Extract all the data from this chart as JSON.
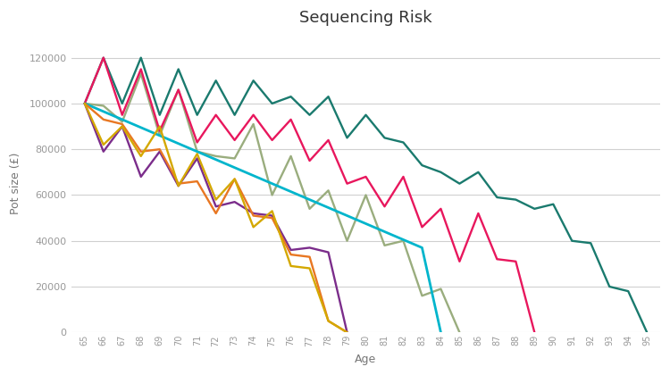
{
  "title": "Sequencing Risk",
  "xlabel": "Age",
  "ylabel": "Pot size (£)",
  "ylim": [
    0,
    130000
  ],
  "yticks": [
    0,
    20000,
    40000,
    60000,
    80000,
    100000,
    120000
  ],
  "background_color": "#ffffff",
  "grid_color": "#d0d0d0",
  "teal_color": "#1a7a6e",
  "crimson_color": "#e8175d",
  "olive_color": "#9aad7e",
  "cyan_color": "#00b5cc",
  "purple_color": "#7b2d8b",
  "orange_color": "#e87722",
  "yellow_color": "#d4a800",
  "teal_vals": [
    100000,
    120000,
    100000,
    120000,
    95000,
    115000,
    95000,
    110000,
    95000,
    110000,
    100000,
    103000,
    95000,
    103000,
    85000,
    95000,
    85000,
    83000,
    73000,
    70000,
    65000,
    70000,
    59000,
    58000,
    54000,
    56000,
    40000,
    39000,
    20000,
    18000,
    0
  ],
  "teal_ages": [
    65,
    66,
    67,
    68,
    69,
    70,
    71,
    72,
    73,
    74,
    75,
    76,
    77,
    78,
    79,
    80,
    81,
    82,
    83,
    84,
    85,
    86,
    87,
    88,
    89,
    90,
    91,
    92,
    93,
    94,
    95
  ],
  "crimson_vals": [
    100000,
    120000,
    95000,
    115000,
    88000,
    106000,
    83000,
    95000,
    84000,
    95000,
    84000,
    93000,
    75000,
    84000,
    65000,
    68000,
    55000,
    68000,
    46000,
    54000,
    31000,
    52000,
    32000,
    31000,
    0
  ],
  "crimson_ages": [
    65,
    66,
    67,
    68,
    69,
    70,
    71,
    72,
    73,
    74,
    75,
    76,
    77,
    78,
    79,
    80,
    81,
    82,
    83,
    84,
    85,
    86,
    87,
    88,
    89
  ],
  "olive_vals": [
    100000,
    99000,
    92000,
    113000,
    86000,
    106000,
    79000,
    77000,
    76000,
    91000,
    60000,
    77000,
    54000,
    62000,
    40000,
    60000,
    38000,
    40000,
    16000,
    19000,
    0
  ],
  "olive_ages": [
    65,
    66,
    67,
    68,
    69,
    70,
    71,
    72,
    73,
    74,
    75,
    76,
    77,
    78,
    79,
    80,
    81,
    82,
    83,
    84,
    85
  ],
  "cyan_vals": [
    100000,
    96500,
    93000,
    89500,
    86000,
    82500,
    79000,
    75500,
    72000,
    68500,
    65000,
    61500,
    58000,
    54500,
    51000,
    47500,
    44000,
    40500,
    37000,
    0
  ],
  "cyan_ages": [
    65,
    66,
    67,
    68,
    69,
    70,
    71,
    72,
    73,
    74,
    75,
    76,
    77,
    78,
    79,
    80,
    81,
    82,
    83,
    84
  ],
  "purple_vals": [
    100000,
    79000,
    90000,
    68000,
    79000,
    64000,
    76000,
    55000,
    57000,
    52000,
    51000,
    36000,
    37000,
    35000,
    0
  ],
  "purple_ages": [
    65,
    66,
    67,
    68,
    69,
    70,
    71,
    72,
    73,
    74,
    75,
    76,
    77,
    78,
    79
  ],
  "orange_vals": [
    100000,
    93000,
    91000,
    79000,
    80000,
    65000,
    66000,
    52000,
    67000,
    51000,
    50000,
    34000,
    33000,
    5000,
    0
  ],
  "orange_ages": [
    65,
    66,
    67,
    68,
    69,
    70,
    71,
    72,
    73,
    74,
    75,
    76,
    77,
    78,
    79
  ],
  "yellow_vals": [
    100000,
    82000,
    90000,
    77000,
    90000,
    64000,
    78000,
    58000,
    67000,
    46000,
    53000,
    29000,
    28000,
    5000,
    0
  ],
  "yellow_ages": [
    65,
    66,
    67,
    68,
    69,
    70,
    71,
    72,
    73,
    74,
    75,
    76,
    77,
    78,
    79
  ]
}
